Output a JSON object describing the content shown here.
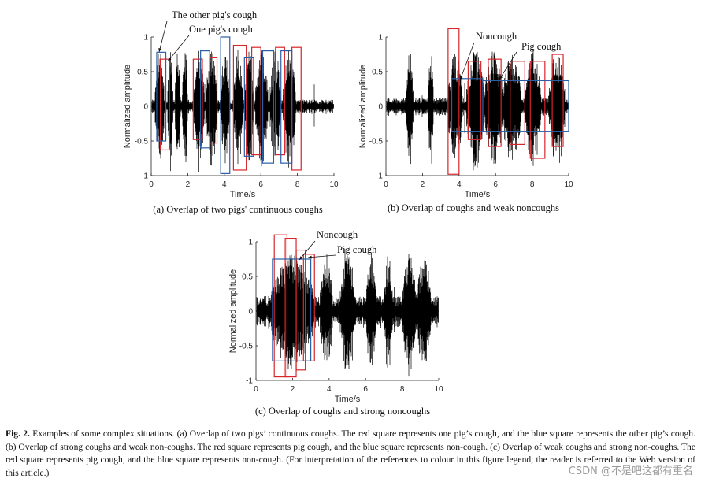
{
  "chart_data": [
    {
      "type": "line",
      "panel": "a",
      "subcaption": "(a) Overlap of two pigs' continuous coughs",
      "xlabel": "Time/s",
      "ylabel": "Normalized amplitude",
      "xlim": [
        0,
        10
      ],
      "ylim": [
        -1,
        1
      ],
      "xticks": [
        "0",
        "2",
        "4",
        "6",
        "8",
        "10"
      ],
      "yticks": [
        "1",
        "0.5",
        "0",
        "-0.5",
        "-1"
      ],
      "annotations": [
        "The other pig's cough",
        "One pig's cough"
      ],
      "signal_segments": [
        [
          0.2,
          0.7
        ],
        [
          0.9,
          1.2
        ],
        [
          1.3,
          1.6
        ],
        [
          1.7,
          2.0
        ],
        [
          2.3,
          2.9
        ],
        [
          3.0,
          3.6
        ],
        [
          3.8,
          4.3
        ],
        [
          4.5,
          5.0
        ],
        [
          5.1,
          5.6
        ],
        [
          5.7,
          6.4
        ],
        [
          6.5,
          7.1
        ],
        [
          7.2,
          7.9
        ]
      ],
      "red_boxes": [
        [
          0.5,
          1.0,
          0.68,
          -0.63
        ],
        [
          2.3,
          2.8,
          0.68,
          -0.48
        ],
        [
          3.2,
          3.6,
          0.7,
          -0.53
        ],
        [
          4.5,
          5.2,
          0.88,
          -0.92
        ],
        [
          5.5,
          6.0,
          0.85,
          -0.7
        ],
        [
          6.8,
          7.3,
          0.85,
          -0.7
        ],
        [
          7.7,
          8.2,
          0.85,
          -0.92
        ]
      ],
      "blue_boxes": [
        [
          0.3,
          0.8,
          0.78,
          -0.5
        ],
        [
          2.7,
          3.2,
          0.8,
          -0.6
        ],
        [
          3.8,
          4.3,
          1.0,
          -0.97
        ],
        [
          5.1,
          5.6,
          0.7,
          -0.72
        ],
        [
          6.1,
          6.7,
          0.8,
          -0.82
        ],
        [
          7.1,
          7.7,
          0.8,
          -0.82
        ]
      ]
    },
    {
      "type": "line",
      "panel": "b",
      "subcaption": "(b) Overlap of coughs and weak noncoughs",
      "xlabel": "Time/s",
      "ylabel": "Normalized amplitude",
      "xlim": [
        0,
        10
      ],
      "ylim": [
        -1,
        1
      ],
      "xticks": [
        "0",
        "2",
        "4",
        "6",
        "8",
        "10"
      ],
      "yticks": [
        "1",
        "0.5",
        "0",
        "-0.5",
        "-1"
      ],
      "annotations": [
        "Noncough",
        "Pig cough"
      ],
      "signal_segments": [
        [
          1.1,
          1.5
        ],
        [
          2.3,
          2.6
        ],
        [
          3.4,
          4.2
        ],
        [
          4.4,
          5.4
        ],
        [
          5.4,
          6.4
        ],
        [
          6.4,
          7.4
        ],
        [
          7.6,
          8.5
        ],
        [
          8.9,
          9.8
        ]
      ],
      "red_boxes": [
        [
          3.4,
          4.0,
          1.12,
          -0.98
        ],
        [
          4.5,
          5.2,
          0.65,
          -0.48
        ],
        [
          5.6,
          6.3,
          0.68,
          -0.58
        ],
        [
          6.8,
          7.6,
          0.65,
          -0.55
        ],
        [
          7.9,
          8.7,
          0.65,
          -0.75
        ],
        [
          9.1,
          9.7,
          0.75,
          -0.58
        ]
      ],
      "blue_boxes": [
        [
          3.6,
          5.3,
          0.4,
          -0.36
        ],
        [
          5.3,
          10.0,
          0.37,
          -0.36
        ]
      ]
    },
    {
      "type": "line",
      "panel": "c",
      "subcaption": "(c) Overlap of coughs and strong noncoughs",
      "xlabel": "Time/s",
      "ylabel": "Normalized amplitude",
      "xlim": [
        0,
        10
      ],
      "ylim": [
        -1,
        1
      ],
      "xticks": [
        "0",
        "2",
        "4",
        "6",
        "8",
        "10"
      ],
      "yticks": [
        "1",
        "0.5",
        "0",
        "-0.5",
        "-1"
      ],
      "annotations": [
        "Noncough",
        "Pig cough"
      ],
      "signal_segments": [
        [
          0.8,
          3.2
        ],
        [
          3.5,
          4.2
        ],
        [
          4.6,
          5.4
        ],
        [
          6.0,
          6.6
        ],
        [
          7.0,
          7.5
        ],
        [
          8.0,
          8.8
        ],
        [
          8.8,
          9.6
        ]
      ],
      "red_boxes": [
        [
          1.0,
          1.7,
          1.1,
          -0.95
        ],
        [
          1.6,
          2.2,
          1.05,
          -0.95
        ],
        [
          2.2,
          2.7,
          0.88,
          -0.85
        ],
        [
          2.6,
          3.2,
          0.82,
          -0.72
        ]
      ],
      "blue_boxes": [
        [
          0.9,
          3.0,
          0.75,
          -0.72
        ]
      ]
    }
  ],
  "caption": {
    "label": "Fig. 2.",
    "text": "Examples of some complex situations. (a) Overlap of two pigs’ continuous coughs. The red square represents one pig’s cough, and the blue square represents the other pig’s cough. (b) Overlap of strong coughs and weak non-coughs. The red square represents pig cough, and the blue square represents non-cough. (c) Overlap of weak coughs and strong non-coughs. The red square represents pig cough, and the blue square represents non-cough. (For interpretation of the references to colour in this figure legend, the reader is referred to the Web version of this article.)"
  },
  "watermark": "CSDN @不是吧这都有重名",
  "colors": {
    "red_box": "#d7262b",
    "blue_box": "#2a5fa8",
    "signal": "#000000"
  }
}
